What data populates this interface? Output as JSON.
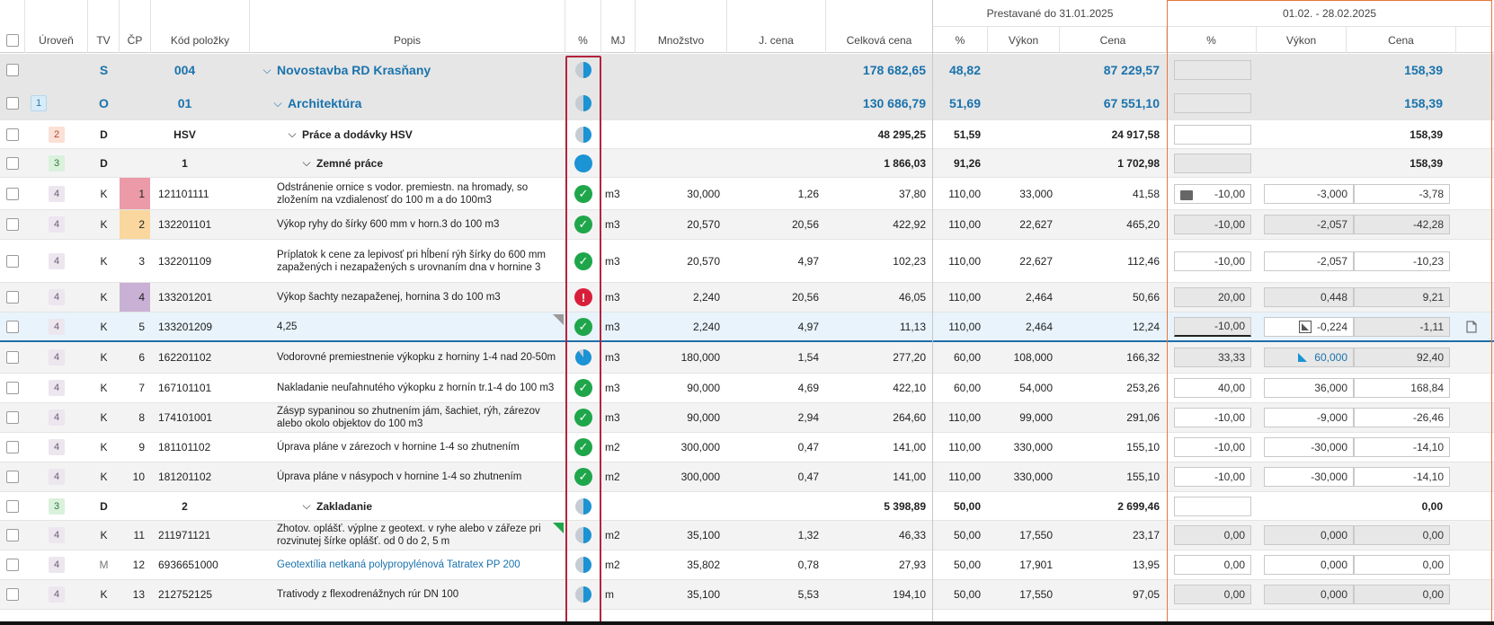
{
  "header": {
    "uroven": "Úroveň",
    "tv": "TV",
    "cp": "ČP",
    "kod": "Kód položky",
    "popis": "Popis",
    "percent": "%",
    "mj": "MJ",
    "mnozstvo": "Množstvo",
    "jcena": "J. cena",
    "celkova": "Celková cena",
    "group1": "Prestavané do 31.01.2025",
    "g1_pct": "%",
    "g1_vykon": "Výkon",
    "g1_cena": "Cena",
    "group2": "01.02. - 28.02.2025",
    "g2_pct": "%",
    "g2_vykon": "Výkon",
    "g2_cena": "Cena"
  },
  "colors": {
    "accent": "#1a73ad",
    "ok": "#1fa64b",
    "error": "#d81f3a",
    "frame_red": "#b3243c",
    "frame_orange": "#e8763f"
  },
  "rows": [
    {
      "lvl": "",
      "tv": "S",
      "cp": "004",
      "kod": "",
      "popis": "Novostavba RD Krasňany",
      "status": "half",
      "mj": "",
      "mn": "",
      "jc": "",
      "cc": "178 682,65",
      "p1": "48,82",
      "v1": "",
      "c1": "87 229,57",
      "p2": "",
      "v2": "",
      "c2": "158,39"
    },
    {
      "lvl": "1",
      "tv": "O",
      "cp": "01",
      "kod": "",
      "popis": "Architektúra",
      "status": "half",
      "mj": "",
      "mn": "",
      "jc": "",
      "cc": "130 686,79",
      "p1": "51,69",
      "v1": "",
      "c1": "67 551,10",
      "p2": "",
      "v2": "",
      "c2": "158,39"
    },
    {
      "lvl": "2",
      "tv": "D",
      "cp": "HSV",
      "kod": "",
      "popis": "Práce a dodávky HSV",
      "status": "half",
      "mj": "",
      "mn": "",
      "jc": "",
      "cc": "48 295,25",
      "p1": "51,59",
      "v1": "",
      "c1": "24 917,58",
      "p2": "",
      "v2": "",
      "c2": "158,39"
    },
    {
      "lvl": "3",
      "tv": "D",
      "cp": "1",
      "kod": "",
      "popis": "Zemné práce",
      "status": "full",
      "mj": "",
      "mn": "",
      "jc": "",
      "cc": "1 866,03",
      "p1": "91,26",
      "v1": "",
      "c1": "1 702,98",
      "p2": "",
      "v2": "",
      "c2": "158,39"
    },
    {
      "lvl": "4",
      "tv": "K",
      "cp": "1",
      "kod": "121101111",
      "popis": "Odstránenie ornice s vodor. premiestn. na hromady, so zložením na vzdialenosť do 100 m a do 100m3",
      "status": "ok",
      "mj": "m3",
      "mn": "30,000",
      "jc": "1,26",
      "cc": "37,80",
      "p1": "110,00",
      "v1": "33,000",
      "c1": "41,58",
      "p2": "-10,00",
      "v2": "-3,000",
      "c2": "-3,78"
    },
    {
      "lvl": "4",
      "tv": "K",
      "cp": "2",
      "kod": "132201101",
      "popis": "Výkop ryhy do šírky 600 mm v horn.3 do 100 m3",
      "status": "ok",
      "mj": "m3",
      "mn": "20,570",
      "jc": "20,56",
      "cc": "422,92",
      "p1": "110,00",
      "v1": "22,627",
      "c1": "465,20",
      "p2": "-10,00",
      "v2": "-2,057",
      "c2": "-42,28"
    },
    {
      "lvl": "4",
      "tv": "K",
      "cp": "3",
      "kod": "132201109",
      "popis": "Príplatok k cene za lepivosť pri hĺbení rýh šírky do 600 mm zapažených i nezapažených s urovnaním dna v hornine 3",
      "status": "ok",
      "mj": "m3",
      "mn": "20,570",
      "jc": "4,97",
      "cc": "102,23",
      "p1": "110,00",
      "v1": "22,627",
      "c1": "112,46",
      "p2": "-10,00",
      "v2": "-2,057",
      "c2": "-10,23"
    },
    {
      "lvl": "4",
      "tv": "K",
      "cp": "4",
      "kod": "133201201",
      "popis": "Výkop šachty nezapaženej, hornina 3 do 100 m3",
      "status": "err",
      "mj": "m3",
      "mn": "2,240",
      "jc": "20,56",
      "cc": "46,05",
      "p1": "110,00",
      "v1": "2,464",
      "c1": "50,66",
      "p2": "20,00",
      "v2": "0,448",
      "c2": "9,21"
    },
    {
      "lvl": "4",
      "tv": "K",
      "cp": "5",
      "kod": "133201209",
      "popis": "4,25",
      "status": "ok",
      "mj": "m3",
      "mn": "2,240",
      "jc": "4,97",
      "cc": "11,13",
      "p1": "110,00",
      "v1": "2,464",
      "c1": "12,24",
      "p2": "-10,00",
      "v2": "-0,224",
      "c2": "-1,11"
    },
    {
      "lvl": "4",
      "tv": "K",
      "cp": "6",
      "kod": "162201102",
      "popis": "Vodorovné premiestnenie výkopku z horniny 1-4 nad 20-50m",
      "status": "part",
      "mj": "m3",
      "mn": "180,000",
      "jc": "1,54",
      "cc": "277,20",
      "p1": "60,00",
      "v1": "108,000",
      "c1": "166,32",
      "p2": "33,33",
      "v2": "60,000",
      "c2": "92,40"
    },
    {
      "lvl": "4",
      "tv": "K",
      "cp": "7",
      "kod": "167101101",
      "popis": "Nakladanie neuľahnutého výkopku z hornín tr.1-4 do 100 m3",
      "status": "ok",
      "mj": "m3",
      "mn": "90,000",
      "jc": "4,69",
      "cc": "422,10",
      "p1": "60,00",
      "v1": "54,000",
      "c1": "253,26",
      "p2": "40,00",
      "v2": "36,000",
      "c2": "168,84"
    },
    {
      "lvl": "4",
      "tv": "K",
      "cp": "8",
      "kod": "174101001",
      "popis": "Zásyp sypaninou so zhutnením jám, šachiet, rýh, zárezov alebo okolo objektov do 100 m3",
      "status": "ok",
      "mj": "m3",
      "mn": "90,000",
      "jc": "2,94",
      "cc": "264,60",
      "p1": "110,00",
      "v1": "99,000",
      "c1": "291,06",
      "p2": "-10,00",
      "v2": "-9,000",
      "c2": "-26,46"
    },
    {
      "lvl": "4",
      "tv": "K",
      "cp": "9",
      "kod": "181101102",
      "popis": "Úprava pláne v zárezoch v hornine 1-4 so zhutnením",
      "status": "ok",
      "mj": "m2",
      "mn": "300,000",
      "jc": "0,47",
      "cc": "141,00",
      "p1": "110,00",
      "v1": "330,000",
      "c1": "155,10",
      "p2": "-10,00",
      "v2": "-30,000",
      "c2": "-14,10"
    },
    {
      "lvl": "4",
      "tv": "K",
      "cp": "10",
      "kod": "181201102",
      "popis": "Úprava pláne v násypoch v hornine 1-4 so zhutnením",
      "status": "ok",
      "mj": "m2",
      "mn": "300,000",
      "jc": "0,47",
      "cc": "141,00",
      "p1": "110,00",
      "v1": "330,000",
      "c1": "155,10",
      "p2": "-10,00",
      "v2": "-30,000",
      "c2": "-14,10"
    },
    {
      "lvl": "3",
      "tv": "D",
      "cp": "2",
      "kod": "",
      "popis": "Zakladanie",
      "status": "half",
      "mj": "",
      "mn": "",
      "jc": "",
      "cc": "5 398,89",
      "p1": "50,00",
      "v1": "",
      "c1": "2 699,46",
      "p2": "",
      "v2": "",
      "c2": "0,00"
    },
    {
      "lvl": "4",
      "tv": "K",
      "cp": "11",
      "kod": "211971121",
      "popis": "Zhotov. oplášť. výplne z geotext. v ryhe alebo v zářeze pri rozvinutej šírke oplášť. od 0 do 2, 5 m",
      "status": "half",
      "mj": "m2",
      "mn": "35,100",
      "jc": "1,32",
      "cc": "46,33",
      "p1": "50,00",
      "v1": "17,550",
      "c1": "23,17",
      "p2": "0,00",
      "v2": "0,000",
      "c2": "0,00"
    },
    {
      "lvl": "4",
      "tv": "M",
      "cp": "12",
      "kod": "6936651000",
      "popis": "Geotextília netkaná polypropylénová Tatratex PP 200",
      "status": "half",
      "mj": "m2",
      "mn": "35,802",
      "jc": "0,78",
      "cc": "27,93",
      "p1": "50,00",
      "v1": "17,901",
      "c1": "13,95",
      "p2": "0,00",
      "v2": "0,000",
      "c2": "0,00"
    },
    {
      "lvl": "4",
      "tv": "K",
      "cp": "13",
      "kod": "212752125",
      "popis": "Trativody z flexodrenážnych rúr DN 100",
      "status": "half",
      "mj": "m",
      "mn": "35,100",
      "jc": "5,53",
      "cc": "194,10",
      "p1": "50,00",
      "v1": "17,550",
      "c1": "97,05",
      "p2": "0,00",
      "v2": "0,000",
      "c2": "0,00"
    }
  ]
}
